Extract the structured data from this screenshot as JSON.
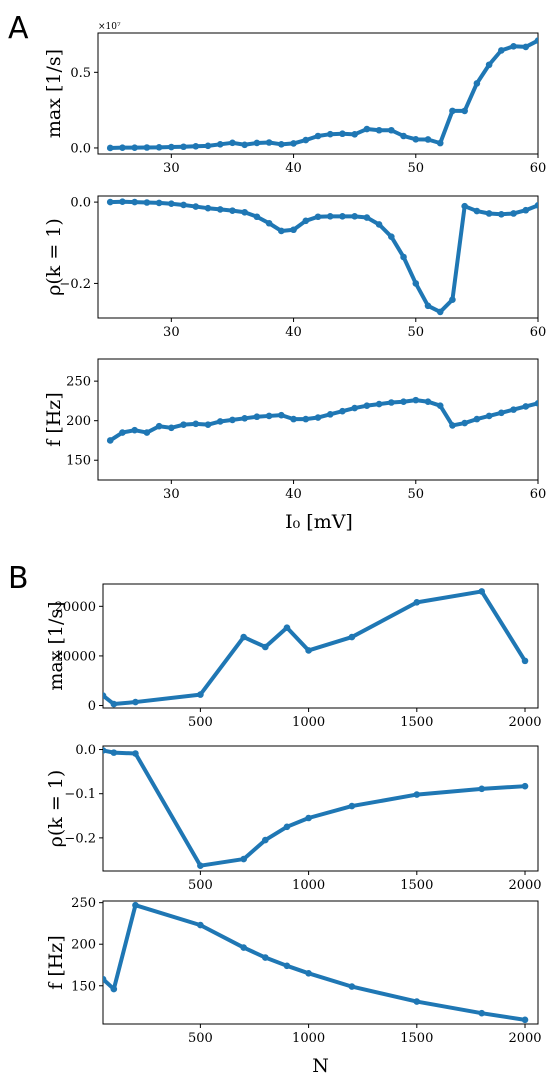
{
  "panels": [
    {
      "letter": "A"
    },
    {
      "letter": "B"
    }
  ],
  "chart_data": [
    {
      "panel": "A",
      "type": "line",
      "x": [
        25,
        26,
        27,
        28,
        29,
        30,
        31,
        32,
        33,
        34,
        35,
        36,
        37,
        38,
        39,
        40,
        41,
        42,
        43,
        44,
        45,
        46,
        47,
        48,
        49,
        50,
        51,
        52,
        53,
        54,
        55,
        56,
        57,
        58,
        59,
        60
      ],
      "values": [
        0,
        0.002,
        0.002,
        0.003,
        0.004,
        0.006,
        0.008,
        0.011,
        0.014,
        0.024,
        0.034,
        0.021,
        0.033,
        0.036,
        0.024,
        0.03,
        0.052,
        0.079,
        0.091,
        0.094,
        0.09,
        0.125,
        0.117,
        0.117,
        0.079,
        0.057,
        0.056,
        0.032,
        0.245,
        0.245,
        0.427,
        0.55,
        0.645,
        0.672,
        0.668,
        0.71
      ],
      "ylabel": "max [1/s]",
      "xlabel": "",
      "offset_text": "×10⁷",
      "xlim": [
        24,
        60
      ],
      "ylim": [
        -0.04,
        0.76
      ],
      "xticks": [
        30,
        40,
        50,
        60
      ],
      "yticks": [
        0.0,
        0.5
      ],
      "ytick_labels": [
        "0.0",
        "0.5"
      ],
      "color": "#1f77b4",
      "grid": false
    },
    {
      "panel": "A",
      "type": "line",
      "x": [
        25,
        26,
        27,
        28,
        29,
        30,
        31,
        32,
        33,
        34,
        35,
        36,
        37,
        38,
        39,
        40,
        41,
        42,
        43,
        44,
        45,
        46,
        47,
        48,
        49,
        50,
        51,
        52,
        53,
        54,
        55,
        56,
        57,
        58,
        59,
        60
      ],
      "values": [
        0,
        0.001,
        0,
        -0.001,
        -0.002,
        -0.004,
        -0.007,
        -0.011,
        -0.015,
        -0.018,
        -0.021,
        -0.025,
        -0.036,
        -0.052,
        -0.071,
        -0.068,
        -0.046,
        -0.036,
        -0.035,
        -0.035,
        -0.035,
        -0.038,
        -0.055,
        -0.085,
        -0.135,
        -0.2,
        -0.255,
        -0.27,
        -0.24,
        -0.01,
        -0.022,
        -0.028,
        -0.03,
        -0.028,
        -0.02,
        -0.008
      ],
      "ylabel": "ρ(k = 1)",
      "xlabel": "",
      "xlim": [
        24,
        60
      ],
      "ylim": [
        -0.285,
        0.015
      ],
      "xticks": [
        30,
        40,
        50,
        60
      ],
      "yticks": [
        0.0,
        -0.2
      ],
      "ytick_labels": [
        "0.0",
        "−0.2"
      ],
      "color": "#1f77b4",
      "grid": false
    },
    {
      "panel": "A",
      "type": "line",
      "x": [
        25,
        26,
        27,
        28,
        29,
        30,
        31,
        32,
        33,
        34,
        35,
        36,
        37,
        38,
        39,
        40,
        41,
        42,
        43,
        44,
        45,
        46,
        47,
        48,
        49,
        50,
        51,
        52,
        53,
        54,
        55,
        56,
        57,
        58,
        59,
        60
      ],
      "values": [
        175,
        185,
        188,
        185,
        193,
        191,
        195,
        196,
        195,
        199,
        201,
        203,
        205,
        206,
        207,
        202,
        202,
        204,
        208,
        212,
        216,
        219,
        221,
        223,
        224,
        226,
        224,
        219,
        194,
        197,
        202,
        206,
        210,
        214,
        218,
        222
      ],
      "ylabel": "f [Hz]",
      "xlabel": "I₀ [mV]",
      "xlim": [
        24,
        60
      ],
      "ylim": [
        125,
        278
      ],
      "xticks": [
        30,
        40,
        50,
        60
      ],
      "yticks": [
        150,
        200,
        250
      ],
      "ytick_labels": [
        "150",
        "200",
        "250"
      ],
      "color": "#1f77b4",
      "grid": false
    },
    {
      "panel": "B",
      "type": "line",
      "x": [
        50,
        100,
        200,
        500,
        700,
        800,
        900,
        1000,
        1200,
        1500,
        1800,
        2000
      ],
      "values": [
        2000,
        300,
        700,
        2200,
        13800,
        11800,
        15700,
        11100,
        13800,
        20800,
        23000,
        9000
      ],
      "ylabel": "max [1/s]",
      "xlabel": "",
      "xlim": [
        50,
        2060
      ],
      "ylim": [
        -500,
        24500
      ],
      "xticks": [
        500,
        1000,
        1500,
        2000
      ],
      "yticks": [
        0,
        10000,
        20000
      ],
      "ytick_labels": [
        "0",
        "10000",
        "20000"
      ],
      "color": "#1f77b4",
      "grid": false
    },
    {
      "panel": "B",
      "type": "line",
      "x": [
        50,
        100,
        200,
        500,
        700,
        800,
        900,
        1000,
        1200,
        1500,
        1800,
        2000
      ],
      "values": [
        -0.002,
        -0.007,
        -0.009,
        -0.263,
        -0.248,
        -0.205,
        -0.175,
        -0.155,
        -0.128,
        -0.102,
        -0.089,
        -0.083
      ],
      "ylabel": "ρ(k = 1)",
      "xlabel": "",
      "xlim": [
        50,
        2060
      ],
      "ylim": [
        -0.275,
        0.008
      ],
      "xticks": [
        500,
        1000,
        1500,
        2000
      ],
      "yticks": [
        0.0,
        -0.1,
        -0.2
      ],
      "ytick_labels": [
        "0.0",
        "−0.1",
        "−0.2"
      ],
      "color": "#1f77b4",
      "grid": false
    },
    {
      "panel": "B",
      "type": "line",
      "x": [
        50,
        100,
        200,
        500,
        700,
        800,
        900,
        1000,
        1200,
        1500,
        1800,
        2000
      ],
      "values": [
        158,
        146,
        247,
        223,
        196,
        184,
        174,
        165,
        149,
        131,
        117,
        109
      ],
      "ylabel": "f [Hz]",
      "xlabel": "N",
      "xlim": [
        50,
        2060
      ],
      "ylim": [
        104,
        252
      ],
      "xticks": [
        500,
        1000,
        1500,
        2000
      ],
      "yticks": [
        150,
        200,
        250
      ],
      "ytick_labels": [
        "150",
        "200",
        "250"
      ],
      "color": "#1f77b4",
      "grid": false
    }
  ]
}
